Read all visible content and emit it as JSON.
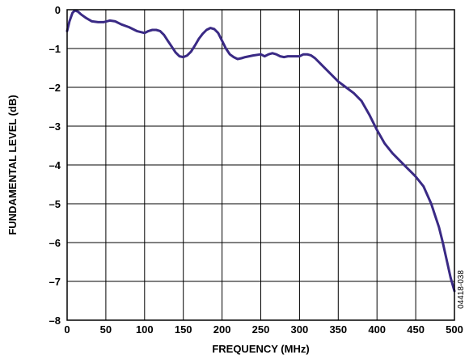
{
  "figure_id": "04418-038",
  "chart_data": {
    "type": "line",
    "title": "",
    "xlabel": "FREQUENCY (MHz)",
    "ylabel": "FUNDAMENTAL LEVEL (dB)",
    "xlim": [
      0,
      500
    ],
    "ylim": [
      -8,
      0
    ],
    "x_ticks": [
      0,
      50,
      100,
      150,
      200,
      250,
      300,
      350,
      400,
      450,
      500
    ],
    "y_ticks": [
      0,
      -1,
      -2,
      -3,
      -4,
      -5,
      -6,
      -7,
      -8
    ],
    "x_tick_labels": [
      "0",
      "50",
      "100",
      "150",
      "200",
      "250",
      "300",
      "350",
      "400",
      "450",
      "500"
    ],
    "y_tick_labels": [
      "0",
      "–1",
      "–2",
      "–3",
      "–4",
      "–5",
      "–6",
      "–7",
      "–8"
    ],
    "grid": true,
    "line_color": "#3a2a85",
    "series": [
      {
        "x": [
          0,
          3,
          7,
          10,
          14,
          18,
          25,
          32,
          40,
          47,
          55,
          62,
          70,
          80,
          90,
          100,
          105,
          110,
          115,
          120,
          125,
          130,
          135,
          140,
          145,
          150,
          155,
          160,
          165,
          170,
          175,
          180,
          185,
          190,
          195,
          200,
          205,
          210,
          215,
          220,
          225,
          230,
          240,
          250,
          255,
          260,
          265,
          270,
          275,
          280,
          285,
          290,
          300,
          305,
          310,
          315,
          320,
          325,
          330,
          340,
          350,
          360,
          370,
          380,
          390,
          400,
          410,
          420,
          430,
          440,
          450,
          460,
          470,
          475,
          480,
          485,
          490,
          495,
          500
        ],
        "y": [
          -0.55,
          -0.3,
          -0.08,
          -0.02,
          -0.05,
          -0.12,
          -0.22,
          -0.3,
          -0.32,
          -0.32,
          -0.28,
          -0.3,
          -0.38,
          -0.45,
          -0.55,
          -0.6,
          -0.55,
          -0.52,
          -0.52,
          -0.55,
          -0.65,
          -0.8,
          -0.95,
          -1.1,
          -1.2,
          -1.22,
          -1.18,
          -1.08,
          -0.92,
          -0.75,
          -0.62,
          -0.52,
          -0.47,
          -0.5,
          -0.6,
          -0.8,
          -1.0,
          -1.15,
          -1.22,
          -1.27,
          -1.25,
          -1.22,
          -1.18,
          -1.15,
          -1.2,
          -1.15,
          -1.12,
          -1.15,
          -1.2,
          -1.22,
          -1.2,
          -1.2,
          -1.2,
          -1.15,
          -1.15,
          -1.18,
          -1.25,
          -1.35,
          -1.45,
          -1.65,
          -1.85,
          -2.0,
          -2.15,
          -2.35,
          -2.7,
          -3.1,
          -3.45,
          -3.7,
          -3.9,
          -4.1,
          -4.3,
          -4.55,
          -5.0,
          -5.3,
          -5.6,
          -6.0,
          -6.45,
          -6.9,
          -7.25
        ]
      }
    ]
  }
}
